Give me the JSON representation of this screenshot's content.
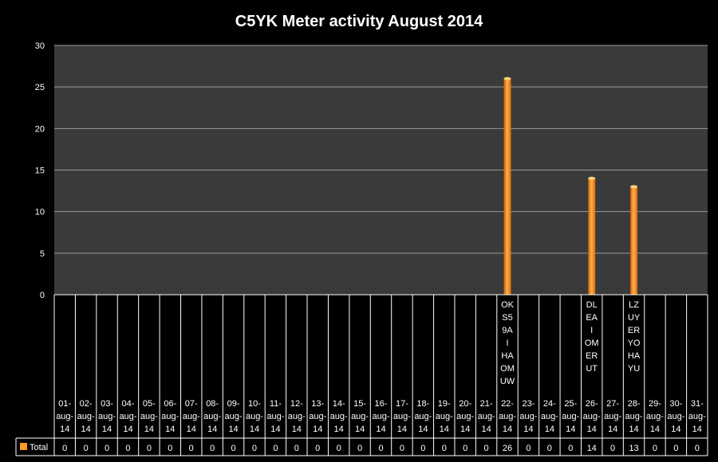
{
  "chart_data": {
    "type": "bar",
    "title": "C5YK  Meter activity August 2014",
    "xlabel": "",
    "ylabel": "",
    "ylim": [
      0,
      30
    ],
    "yticks": [
      0,
      5,
      10,
      15,
      20,
      25,
      30
    ],
    "grid": true,
    "legend": "data-table-left",
    "colors": {
      "background": "#000000",
      "plot_area": "#3a3a3a",
      "bar": "#f59a23",
      "bar_dark": "#c8580a",
      "gridline": "#9a9a9a"
    },
    "categories": [
      "01-aug-14",
      "02-aug-14",
      "03-aug-14",
      "04-aug-14",
      "05-aug-14",
      "06-aug-14",
      "07-aug-14",
      "08-aug-14",
      "09-aug-14",
      "10-aug-14",
      "11-aug-14",
      "12-aug-14",
      "13-aug-14",
      "14-aug-14",
      "15-aug-14",
      "16-aug-14",
      "17-aug-14",
      "18-aug-14",
      "19-aug-14",
      "20-aug-14",
      "21-aug-14",
      "22-aug-14",
      "23-aug-14",
      "24-aug-14",
      "25-aug-14",
      "26-aug-14",
      "27-aug-14",
      "28-aug-14",
      "29-aug-14",
      "30-aug-14",
      "31-aug-14"
    ],
    "category_lines": [
      [
        "01-",
        "aug-",
        "14"
      ],
      [
        "02-",
        "aug-",
        "14"
      ],
      [
        "03-",
        "aug-",
        "14"
      ],
      [
        "04-",
        "aug-",
        "14"
      ],
      [
        "05-",
        "aug-",
        "14"
      ],
      [
        "06-",
        "aug-",
        "14"
      ],
      [
        "07-",
        "aug-",
        "14"
      ],
      [
        "08-",
        "aug-",
        "14"
      ],
      [
        "09-",
        "aug-",
        "14"
      ],
      [
        "10-",
        "aug-",
        "14"
      ],
      [
        "11-",
        "aug-",
        "14"
      ],
      [
        "12-",
        "aug-",
        "14"
      ],
      [
        "13-",
        "aug-",
        "14"
      ],
      [
        "14-",
        "aug-",
        "14"
      ],
      [
        "15-",
        "aug-",
        "14"
      ],
      [
        "16-",
        "aug-",
        "14"
      ],
      [
        "17-",
        "aug-",
        "14"
      ],
      [
        "18-",
        "aug-",
        "14"
      ],
      [
        "19-",
        "aug-",
        "14"
      ],
      [
        "20-",
        "aug-",
        "14"
      ],
      [
        "21-",
        "aug-",
        "14"
      ],
      [
        "22-",
        "aug-",
        "14"
      ],
      [
        "23-",
        "aug-",
        "14"
      ],
      [
        "24-",
        "aug-",
        "14"
      ],
      [
        "25-",
        "aug-",
        "14"
      ],
      [
        "26-",
        "aug-",
        "14"
      ],
      [
        "27-",
        "aug-",
        "14"
      ],
      [
        "28-",
        "aug-",
        "14"
      ],
      [
        "29-",
        "aug-",
        "14"
      ],
      [
        "30-",
        "aug-",
        "14"
      ],
      [
        "31-",
        "aug-",
        "14"
      ]
    ],
    "annotations": [
      {
        "category": "22-aug-14",
        "lines": [
          "OK",
          "S5",
          "9A",
          "I",
          "HA",
          "OM",
          "UW"
        ]
      },
      {
        "category": "26-aug-14",
        "lines": [
          "DL",
          "EA",
          "I",
          "OM",
          "ER",
          "UT"
        ]
      },
      {
        "category": "28-aug-14",
        "lines": [
          "LZ",
          "UY",
          "ER",
          "YO",
          "HA",
          "YU"
        ]
      }
    ],
    "series": [
      {
        "name": "Total",
        "values": [
          0,
          0,
          0,
          0,
          0,
          0,
          0,
          0,
          0,
          0,
          0,
          0,
          0,
          0,
          0,
          0,
          0,
          0,
          0,
          0,
          0,
          26,
          0,
          0,
          0,
          14,
          0,
          13,
          0,
          0,
          0
        ]
      }
    ]
  }
}
